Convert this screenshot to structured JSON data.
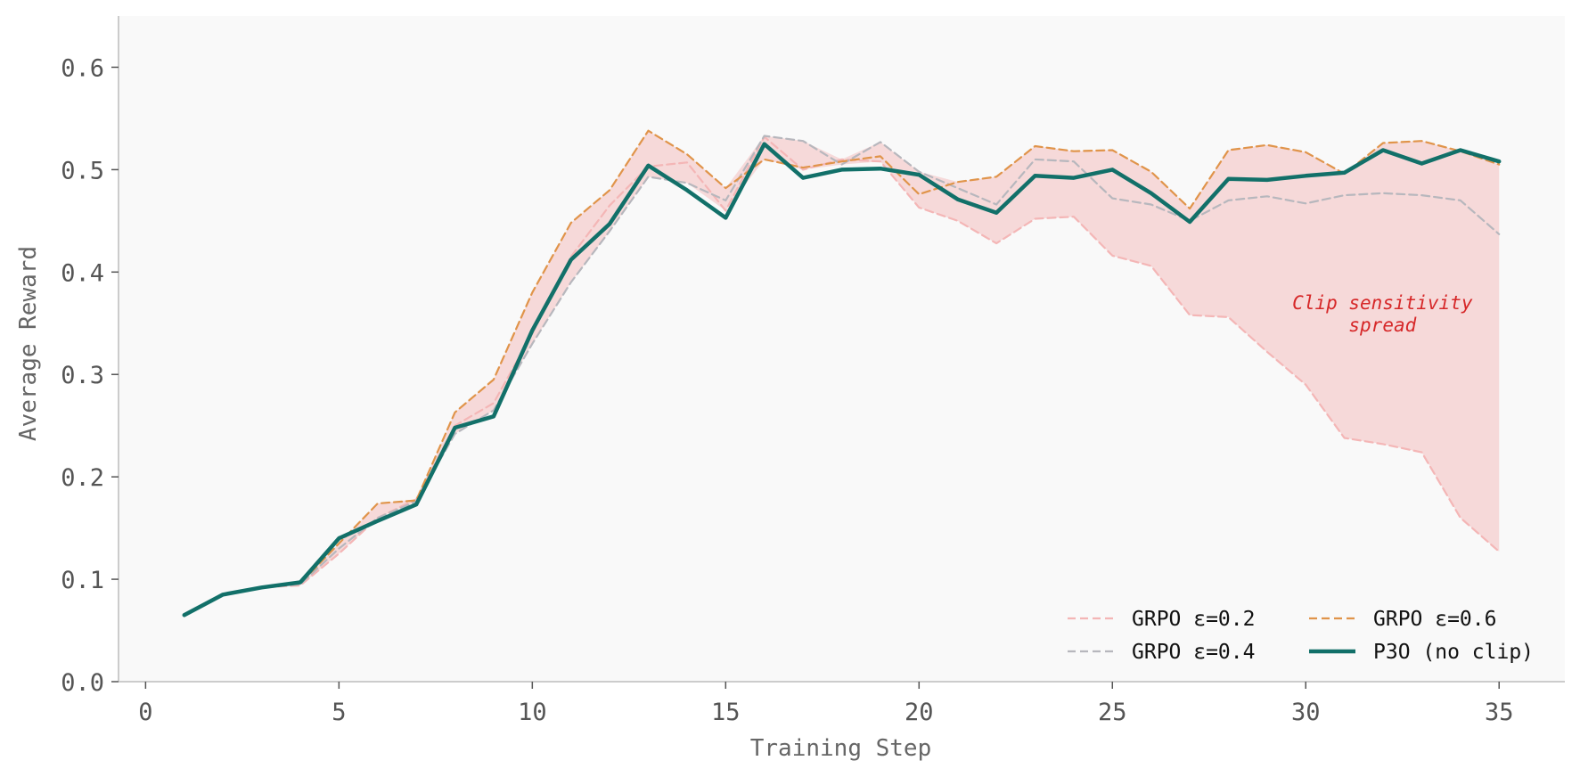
{
  "chart_data": {
    "type": "line",
    "title": "",
    "xlabel": "Training Step",
    "ylabel": "Average Reward",
    "xlim": [
      -0.7,
      36.7
    ],
    "ylim": [
      0.0,
      0.65
    ],
    "xticks": [
      0,
      5,
      10,
      15,
      20,
      25,
      30,
      35
    ],
    "yticks": [
      0.0,
      0.1,
      0.2,
      0.3,
      0.4,
      0.5,
      0.6
    ],
    "xtick_labels": [
      "0",
      "5",
      "10",
      "15",
      "20",
      "25",
      "30",
      "35"
    ],
    "ytick_labels": [
      "0.0",
      "0.1",
      "0.2",
      "0.3",
      "0.4",
      "0.5",
      "0.6"
    ],
    "grid": false,
    "legend_position": "lower-right",
    "background_color": "#f9f9f9",
    "x": [
      1,
      2,
      3,
      4,
      5,
      6,
      7,
      8,
      9,
      10,
      11,
      12,
      13,
      14,
      15,
      16,
      17,
      18,
      19,
      20,
      21,
      22,
      23,
      24,
      25,
      26,
      27,
      28,
      29,
      30,
      31,
      32,
      33,
      34,
      35
    ],
    "series": [
      {
        "name": "GRPO ε=0.2",
        "color": "#f4b6b6",
        "style": "dashed",
        "values": [
          0.065,
          0.085,
          0.092,
          0.094,
          0.125,
          0.16,
          0.178,
          0.25,
          0.272,
          0.34,
          0.415,
          0.465,
          0.503,
          0.507,
          0.46,
          0.532,
          0.5,
          0.51,
          0.508,
          0.463,
          0.45,
          0.428,
          0.452,
          0.454,
          0.416,
          0.406,
          0.358,
          0.356,
          0.322,
          0.29,
          0.238,
          0.232,
          0.224,
          0.16,
          0.127
        ]
      },
      {
        "name": "GRPO ε=0.4",
        "color": "#b7b7bd",
        "style": "dashed",
        "values": [
          0.065,
          0.085,
          0.092,
          0.095,
          0.13,
          0.16,
          0.176,
          0.242,
          0.265,
          0.33,
          0.39,
          0.44,
          0.493,
          0.487,
          0.47,
          0.533,
          0.528,
          0.505,
          0.527,
          0.498,
          0.482,
          0.466,
          0.51,
          0.508,
          0.472,
          0.466,
          0.45,
          0.47,
          0.474,
          0.467,
          0.475,
          0.477,
          0.475,
          0.47,
          0.437
        ]
      },
      {
        "name": "GRPO ε=0.6",
        "color": "#e0944a",
        "style": "dashed",
        "values": [
          0.065,
          0.085,
          0.092,
          0.096,
          0.135,
          0.174,
          0.177,
          0.263,
          0.295,
          0.38,
          0.448,
          0.48,
          0.538,
          0.515,
          0.482,
          0.51,
          0.502,
          0.508,
          0.513,
          0.476,
          0.488,
          0.493,
          0.523,
          0.518,
          0.519,
          0.498,
          0.462,
          0.519,
          0.524,
          0.517,
          0.496,
          0.526,
          0.528,
          0.518,
          0.505
        ]
      },
      {
        "name": "P3O (no clip)",
        "color": "#127069",
        "style": "solid",
        "values": [
          0.065,
          0.085,
          0.092,
          0.097,
          0.14,
          0.157,
          0.173,
          0.248,
          0.259,
          0.343,
          0.412,
          0.447,
          0.504,
          0.48,
          0.453,
          0.525,
          0.492,
          0.5,
          0.501,
          0.495,
          0.471,
          0.458,
          0.494,
          0.492,
          0.5,
          0.477,
          0.449,
          0.491,
          0.49,
          0.494,
          0.497,
          0.519,
          0.506,
          0.519,
          0.508
        ]
      }
    ],
    "band": {
      "description_label": "Clip sensitivity spread",
      "color": "#f5d5d5",
      "between": "min/max of GRPO series"
    },
    "annotation": {
      "lines": [
        "Clip sensitivity",
        "spread"
      ],
      "x": 31.2,
      "y": 0.36,
      "color": "#d62728"
    }
  }
}
